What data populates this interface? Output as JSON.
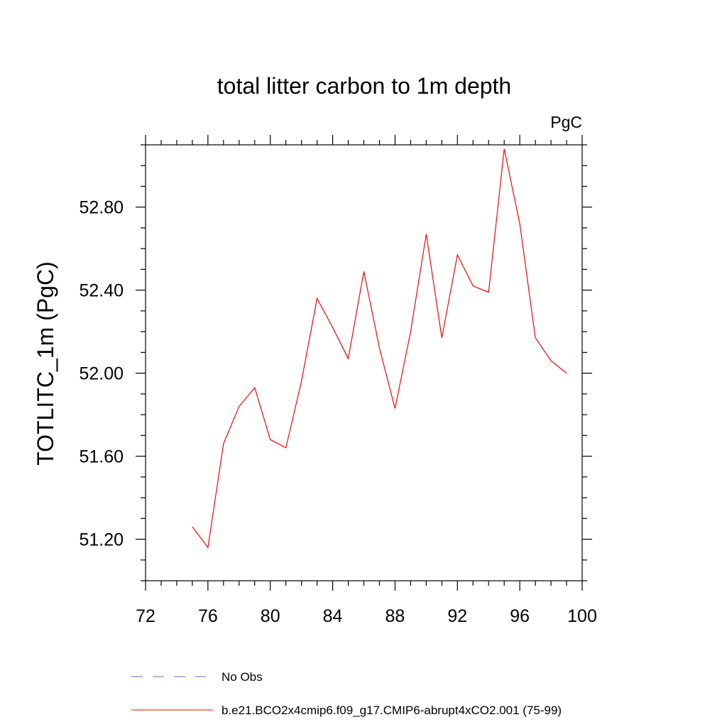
{
  "chart_data": {
    "type": "line",
    "title": "total litter carbon to 1m depth",
    "units": "PgC",
    "ylabel": "TOTLITC_1m  (PgC)",
    "xlabel": "",
    "xlim": [
      72,
      100
    ],
    "ylim": [
      51.0,
      53.1
    ],
    "xticks": [
      72,
      76,
      80,
      84,
      88,
      92,
      96,
      100
    ],
    "xtick_labels": [
      "72",
      "76",
      "80",
      "84",
      "88",
      "92",
      "96",
      "100"
    ],
    "yticks": [
      51.2,
      51.6,
      52.0,
      52.4,
      52.8
    ],
    "ytick_labels": [
      "51.20",
      "51.60",
      "52.00",
      "52.40",
      "52.80"
    ],
    "grid": false,
    "legend_position": "bottom",
    "legend": [
      {
        "label": "No Obs",
        "color": "#6f62b8",
        "dash": true
      },
      {
        "label": "b.e21.BCO2x4cmip6.f09_g17.CMIP6-abrupt4xCO2.001 (75-99)",
        "color": "#ff0000",
        "dash": false
      }
    ],
    "series": [
      {
        "name": "b.e21.BCO2x4cmip6.f09_g17.CMIP6-abrupt4xCO2.001 (75-99)",
        "color": "#ff0000",
        "x": [
          75,
          76,
          77,
          78,
          79,
          80,
          81,
          82,
          83,
          84,
          85,
          86,
          87,
          88,
          89,
          90,
          91,
          92,
          93,
          94,
          95,
          96,
          97,
          98,
          99
        ],
        "y": [
          51.26,
          51.16,
          51.66,
          51.84,
          51.93,
          51.68,
          51.64,
          51.96,
          52.36,
          52.22,
          52.07,
          52.49,
          52.12,
          51.83,
          52.2,
          52.67,
          52.17,
          52.57,
          52.42,
          52.39,
          53.08,
          52.72,
          52.17,
          52.06,
          52.0
        ]
      }
    ]
  }
}
